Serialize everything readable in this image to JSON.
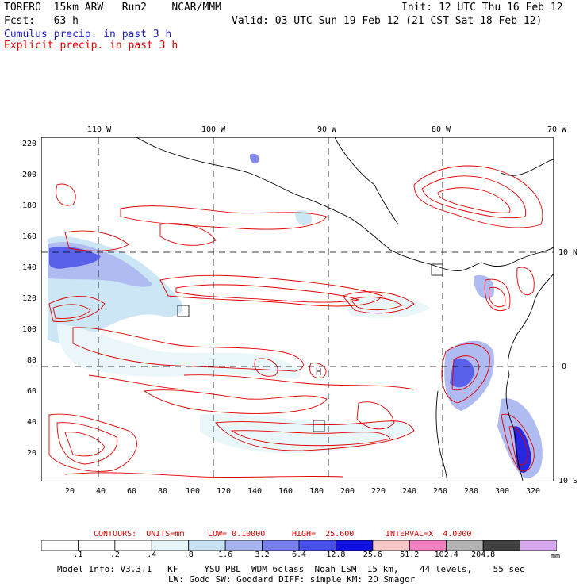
{
  "header": {
    "model_line": "TORERO  15km ARW   Run2    NCAR/MMM",
    "init": "Init: 12 UTC Thu 16 Feb 12",
    "fcst": "Fcst:   63 h",
    "valid": "Valid: 03 UTC Sun 19 Feb 12 (21 CST Sat 18 Feb 12)",
    "legend_cumulus": "Cumulus precip. in past 3 h",
    "legend_explicit": "Explicit precip. in past 3 h"
  },
  "map": {
    "top_lon_labels": [
      "110 W",
      "100 W",
      "90 W",
      "80 W",
      "70 W"
    ],
    "right_lat_labels": [
      "10 N",
      "0",
      "10 S"
    ],
    "y_ticks": [
      "220",
      "200",
      "180",
      "160",
      "140",
      "120",
      "100",
      "80",
      "60",
      "40",
      "20"
    ],
    "x_ticks": [
      "20",
      "40",
      "60",
      "80",
      "100",
      "120",
      "140",
      "160",
      "180",
      "200",
      "220",
      "240",
      "260",
      "280",
      "300",
      "320"
    ],
    "high_marker": "H"
  },
  "contour_info": {
    "contours": "CONTOURS:  UNITS=mm",
    "low": "LOW= 0.10000",
    "high": "HIGH=  25.600",
    "interval": "INTERVAL=X  4.0000"
  },
  "colorbar": {
    "labels": [
      ".1",
      ".2",
      ".4",
      ".8",
      "1.6",
      "3.2",
      "6.4",
      "12.8",
      "25.6",
      "51.2",
      "102.4",
      "204.8"
    ],
    "colors": [
      "#ffffff",
      "#ffffff",
      "#ffffff",
      "#e8f6fa",
      "#c8e4f4",
      "#a8b4f0",
      "#7880ec",
      "#4850e8",
      "#1010e0",
      "#f8c8c8",
      "#f080c0",
      "#b4b4b4",
      "#404040",
      "#d8a8f0"
    ],
    "unit": "mm"
  },
  "footer": {
    "line1": "Model Info: V3.3.1   KF     YSU PBL  WDM 6class  Noah LSM  15 km,    44 levels,    55 sec",
    "line2": "LW: Godd SW: Goddard DIFF: simple KM: 2D Smagor"
  }
}
